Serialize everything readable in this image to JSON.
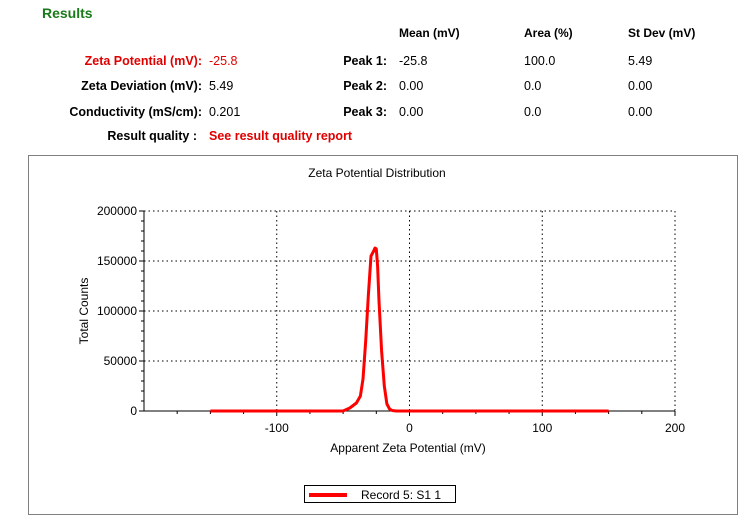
{
  "results": {
    "title": "Results",
    "columns": [
      "Mean (mV)",
      "Area (%)",
      "St Dev (mV)"
    ],
    "metrics": [
      {
        "label": "Zeta Potential (mV):",
        "value": "-25.8"
      },
      {
        "label": "Zeta Deviation (mV):",
        "value": "5.49"
      },
      {
        "label": "Conductivity (mS/cm):",
        "value": "0.201"
      }
    ],
    "quality": {
      "label": "Result quality :",
      "value": "See result quality report"
    },
    "peaks": [
      {
        "label": "Peak 1:",
        "mean": "-25.8",
        "area": "100.0",
        "stdev": "5.49"
      },
      {
        "label": "Peak 2:",
        "mean": "0.00",
        "area": "0.0",
        "stdev": "0.00"
      },
      {
        "label": "Peak 3:",
        "mean": "0.00",
        "area": "0.0",
        "stdev": "0.00"
      }
    ],
    "colors": {
      "title": "#1a7a1a",
      "highlight": "#e00000"
    }
  },
  "chart_data": {
    "type": "line",
    "title": "Zeta Potential Distribution",
    "xlabel": "Apparent Zeta Potential (mV)",
    "ylabel": "Total Counts",
    "xlim": [
      -200,
      200
    ],
    "ylim": [
      0,
      200000
    ],
    "x_ticks": [
      "-100",
      "0",
      "100",
      "200"
    ],
    "x_tick_values": [
      -100,
      0,
      100,
      200
    ],
    "y_ticks": [
      "200000",
      "150000",
      "100000",
      "50000",
      "0"
    ],
    "y_tick_values": [
      200000,
      150000,
      100000,
      50000,
      0
    ],
    "grid": true,
    "series": [
      {
        "name": "Record 5: S1 1",
        "color": "#ff0000",
        "x": [
          -150,
          -50,
          -45,
          -40,
          -37,
          -35,
          -33,
          -31,
          -29,
          -27,
          -26,
          -25,
          -24,
          -23,
          -21,
          -19,
          -17,
          -15,
          -13,
          -10,
          -5,
          0,
          50,
          100,
          150
        ],
        "y": [
          0,
          0,
          3000,
          8000,
          15000,
          32000,
          70000,
          115000,
          155000,
          160000,
          163000,
          162000,
          145000,
          110000,
          60000,
          25000,
          7000,
          2000,
          500,
          0,
          0,
          0,
          0,
          0,
          0
        ]
      }
    ]
  }
}
